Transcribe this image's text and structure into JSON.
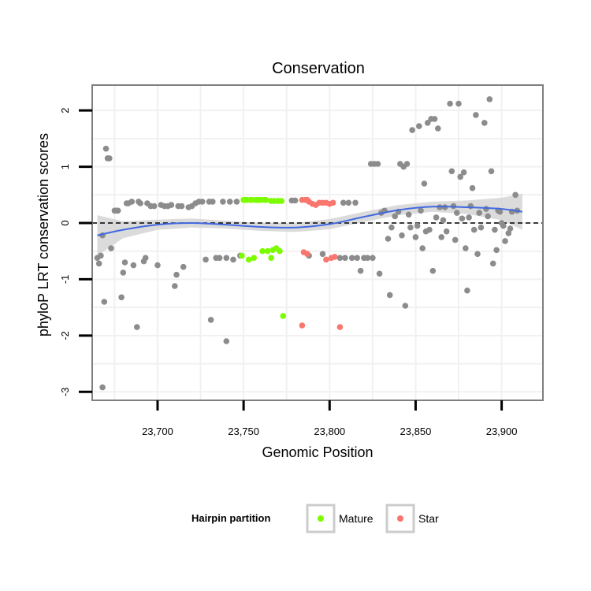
{
  "chart_data": {
    "type": "scatter",
    "title": "Conservation",
    "xlabel": "Genomic Position",
    "ylabel": "phyloP LRT conservation scores",
    "xlim": [
      23662,
      23924
    ],
    "ylim": [
      -3.15,
      2.45
    ],
    "x_ticks": [
      23700,
      23750,
      23800,
      23850,
      23900
    ],
    "x_tick_labels": [
      "23,700",
      "23,750",
      "23,800",
      "23,850",
      "23,900"
    ],
    "y_ticks": [
      -3,
      -2,
      -1,
      0,
      1,
      2
    ],
    "y_tick_labels": [
      "-3",
      "-2",
      "-1",
      "0",
      "1",
      "2"
    ],
    "reference_line": {
      "y": 0,
      "style": "dashed"
    },
    "colors": {
      "other": "#8c8c8c",
      "mature": "#7cfc00",
      "star": "#f8766d",
      "smooth": "#4169e1",
      "band": "#cfcfcf"
    },
    "legend": {
      "title": "Hairpin partition",
      "entries": [
        {
          "label": "Mature",
          "color": "#7cfc00"
        },
        {
          "label": "Star",
          "color": "#f8766d"
        }
      ]
    },
    "smooth": {
      "x": [
        23665,
        23680,
        23700,
        23720,
        23740,
        23760,
        23780,
        23800,
        23820,
        23840,
        23860,
        23880,
        23900,
        23912
      ],
      "y": [
        -0.22,
        -0.12,
        -0.03,
        0.0,
        -0.03,
        -0.07,
        -0.08,
        -0.02,
        0.11,
        0.23,
        0.29,
        0.28,
        0.25,
        0.2
      ],
      "ci_lower": [
        -0.58,
        -0.27,
        -0.12,
        -0.08,
        -0.1,
        -0.14,
        -0.16,
        -0.11,
        0.02,
        0.14,
        0.2,
        0.16,
        0.05,
        -0.12
      ],
      "ci_upper": [
        0.14,
        0.03,
        0.06,
        0.08,
        0.04,
        0.0,
        0.0,
        0.07,
        0.2,
        0.32,
        0.38,
        0.4,
        0.45,
        0.52
      ]
    },
    "series": [
      {
        "name": "Other",
        "color": "#8c8c8c",
        "points": [
          [
            23665,
            -0.62
          ],
          [
            23666,
            -0.72
          ],
          [
            23667,
            -0.58
          ],
          [
            23668,
            -0.22
          ],
          [
            23668,
            -2.92
          ],
          [
            23669,
            -1.4
          ],
          [
            23670,
            1.32
          ],
          [
            23671,
            1.15
          ],
          [
            23672,
            1.15
          ],
          [
            23673,
            -0.45
          ],
          [
            23675,
            0.22
          ],
          [
            23676,
            0.22
          ],
          [
            23677,
            0.22
          ],
          [
            23679,
            -1.32
          ],
          [
            23680,
            -0.88
          ],
          [
            23681,
            -0.7
          ],
          [
            23682,
            0.35
          ],
          [
            23683,
            0.35
          ],
          [
            23685,
            0.38
          ],
          [
            23686,
            -0.75
          ],
          [
            23688,
            -1.85
          ],
          [
            23689,
            0.38
          ],
          [
            23690,
            0.35
          ],
          [
            23692,
            -0.68
          ],
          [
            23693,
            -0.62
          ],
          [
            23694,
            0.35
          ],
          [
            23696,
            0.3
          ],
          [
            23698,
            0.3
          ],
          [
            23700,
            -0.75
          ],
          [
            23702,
            0.32
          ],
          [
            23704,
            0.3
          ],
          [
            23706,
            0.3
          ],
          [
            23708,
            0.32
          ],
          [
            23710,
            -1.12
          ],
          [
            23711,
            -0.92
          ],
          [
            23712,
            0.3
          ],
          [
            23714,
            0.3
          ],
          [
            23715,
            -0.78
          ],
          [
            23718,
            0.28
          ],
          [
            23720,
            0.3
          ],
          [
            23722,
            0.35
          ],
          [
            23724,
            0.38
          ],
          [
            23726,
            0.38
          ],
          [
            23728,
            -0.65
          ],
          [
            23730,
            0.38
          ],
          [
            23731,
            -1.72
          ],
          [
            23732,
            0.38
          ],
          [
            23734,
            -0.62
          ],
          [
            23736,
            -0.62
          ],
          [
            23738,
            0.38
          ],
          [
            23740,
            -2.1
          ],
          [
            23740,
            -0.62
          ],
          [
            23742,
            0.38
          ],
          [
            23744,
            -0.65
          ],
          [
            23746,
            0.38
          ],
          [
            23748,
            -0.58
          ],
          [
            23778,
            0.4
          ],
          [
            23780,
            0.4
          ],
          [
            23788,
            -0.58
          ],
          [
            23796,
            -0.55
          ],
          [
            23806,
            -0.62
          ],
          [
            23808,
            0.36
          ],
          [
            23809,
            -0.62
          ],
          [
            23811,
            0.36
          ],
          [
            23813,
            -0.62
          ],
          [
            23815,
            0.36
          ],
          [
            23816,
            -0.62
          ],
          [
            23818,
            -0.85
          ],
          [
            23820,
            -0.62
          ],
          [
            23822,
            -0.62
          ],
          [
            23824,
            1.05
          ],
          [
            23825,
            -0.62
          ],
          [
            23826,
            1.05
          ],
          [
            23828,
            1.05
          ],
          [
            23829,
            -0.9
          ],
          [
            23830,
            0.18
          ],
          [
            23832,
            0.22
          ],
          [
            23834,
            -0.28
          ],
          [
            23835,
            -1.28
          ],
          [
            23836,
            -0.08
          ],
          [
            23838,
            0.12
          ],
          [
            23840,
            0.2
          ],
          [
            23841,
            1.05
          ],
          [
            23842,
            -0.22
          ],
          [
            23843,
            1.0
          ],
          [
            23844,
            -1.47
          ],
          [
            23845,
            1.05
          ],
          [
            23846,
            0.15
          ],
          [
            23847,
            -0.08
          ],
          [
            23848,
            1.65
          ],
          [
            23850,
            -0.25
          ],
          [
            23851,
            -0.05
          ],
          [
            23852,
            1.72
          ],
          [
            23853,
            0.22
          ],
          [
            23854,
            -0.45
          ],
          [
            23855,
            0.7
          ],
          [
            23856,
            -0.15
          ],
          [
            23857,
            1.78
          ],
          [
            23858,
            -0.12
          ],
          [
            23859,
            1.85
          ],
          [
            23860,
            -0.85
          ],
          [
            23861,
            1.85
          ],
          [
            23862,
            0.1
          ],
          [
            23863,
            1.68
          ],
          [
            23864,
            0.28
          ],
          [
            23865,
            -0.25
          ],
          [
            23866,
            0.05
          ],
          [
            23867,
            0.28
          ],
          [
            23868,
            -0.15
          ],
          [
            23870,
            2.12
          ],
          [
            23871,
            0.92
          ],
          [
            23872,
            0.3
          ],
          [
            23873,
            -0.3
          ],
          [
            23874,
            0.18
          ],
          [
            23875,
            2.12
          ],
          [
            23876,
            0.82
          ],
          [
            23877,
            0.08
          ],
          [
            23878,
            0.9
          ],
          [
            23879,
            -0.45
          ],
          [
            23880,
            -1.2
          ],
          [
            23881,
            0.1
          ],
          [
            23882,
            0.3
          ],
          [
            23883,
            0.62
          ],
          [
            23884,
            -0.12
          ],
          [
            23885,
            1.92
          ],
          [
            23886,
            -0.55
          ],
          [
            23887,
            0.18
          ],
          [
            23888,
            -0.08
          ],
          [
            23890,
            1.78
          ],
          [
            23891,
            0.25
          ],
          [
            23892,
            0.12
          ],
          [
            23893,
            2.2
          ],
          [
            23894,
            0.92
          ],
          [
            23895,
            -0.72
          ],
          [
            23896,
            -0.12
          ],
          [
            23897,
            -0.48
          ],
          [
            23898,
            0.22
          ],
          [
            23899,
            0.2
          ],
          [
            23900,
            0.0
          ],
          [
            23901,
            -0.05
          ],
          [
            23902,
            -0.32
          ],
          [
            23904,
            -0.18
          ],
          [
            23905,
            -0.1
          ],
          [
            23906,
            0.2
          ],
          [
            23908,
            0.5
          ],
          [
            23909,
            0.22
          ]
        ]
      },
      {
        "name": "Mature",
        "color": "#7cfc00",
        "points": [
          [
            23749,
            -0.58
          ],
          [
            23750,
            0.41
          ],
          [
            23751,
            0.41
          ],
          [
            23752,
            0.41
          ],
          [
            23753,
            -0.65
          ],
          [
            23754,
            0.41
          ],
          [
            23755,
            0.41
          ],
          [
            23756,
            -0.62
          ],
          [
            23757,
            0.41
          ],
          [
            23758,
            0.41
          ],
          [
            23759,
            0.41
          ],
          [
            23760,
            0.41
          ],
          [
            23761,
            -0.5
          ],
          [
            23762,
            0.41
          ],
          [
            23763,
            0.41
          ],
          [
            23764,
            -0.5
          ],
          [
            23766,
            0.39
          ],
          [
            23766,
            -0.62
          ],
          [
            23767,
            -0.48
          ],
          [
            23768,
            0.39
          ],
          [
            23769,
            -0.45
          ],
          [
            23770,
            0.39
          ],
          [
            23771,
            -0.5
          ],
          [
            23772,
            0.39
          ],
          [
            23773,
            -1.65
          ]
        ]
      },
      {
        "name": "Star",
        "color": "#f8766d",
        "points": [
          [
            23784,
            0.41
          ],
          [
            23785,
            -0.52
          ],
          [
            23786,
            0.41
          ],
          [
            23787,
            0.41
          ],
          [
            23787,
            -0.55
          ],
          [
            23788,
            0.38
          ],
          [
            23790,
            0.34
          ],
          [
            23792,
            0.32
          ],
          [
            23794,
            0.36
          ],
          [
            23796,
            0.36
          ],
          [
            23798,
            0.36
          ],
          [
            23800,
            0.34
          ],
          [
            23802,
            0.36
          ],
          [
            23784,
            -1.82
          ],
          [
            23798,
            -0.65
          ],
          [
            23801,
            -0.62
          ],
          [
            23803,
            -0.6
          ],
          [
            23806,
            -1.85
          ]
        ]
      }
    ]
  }
}
